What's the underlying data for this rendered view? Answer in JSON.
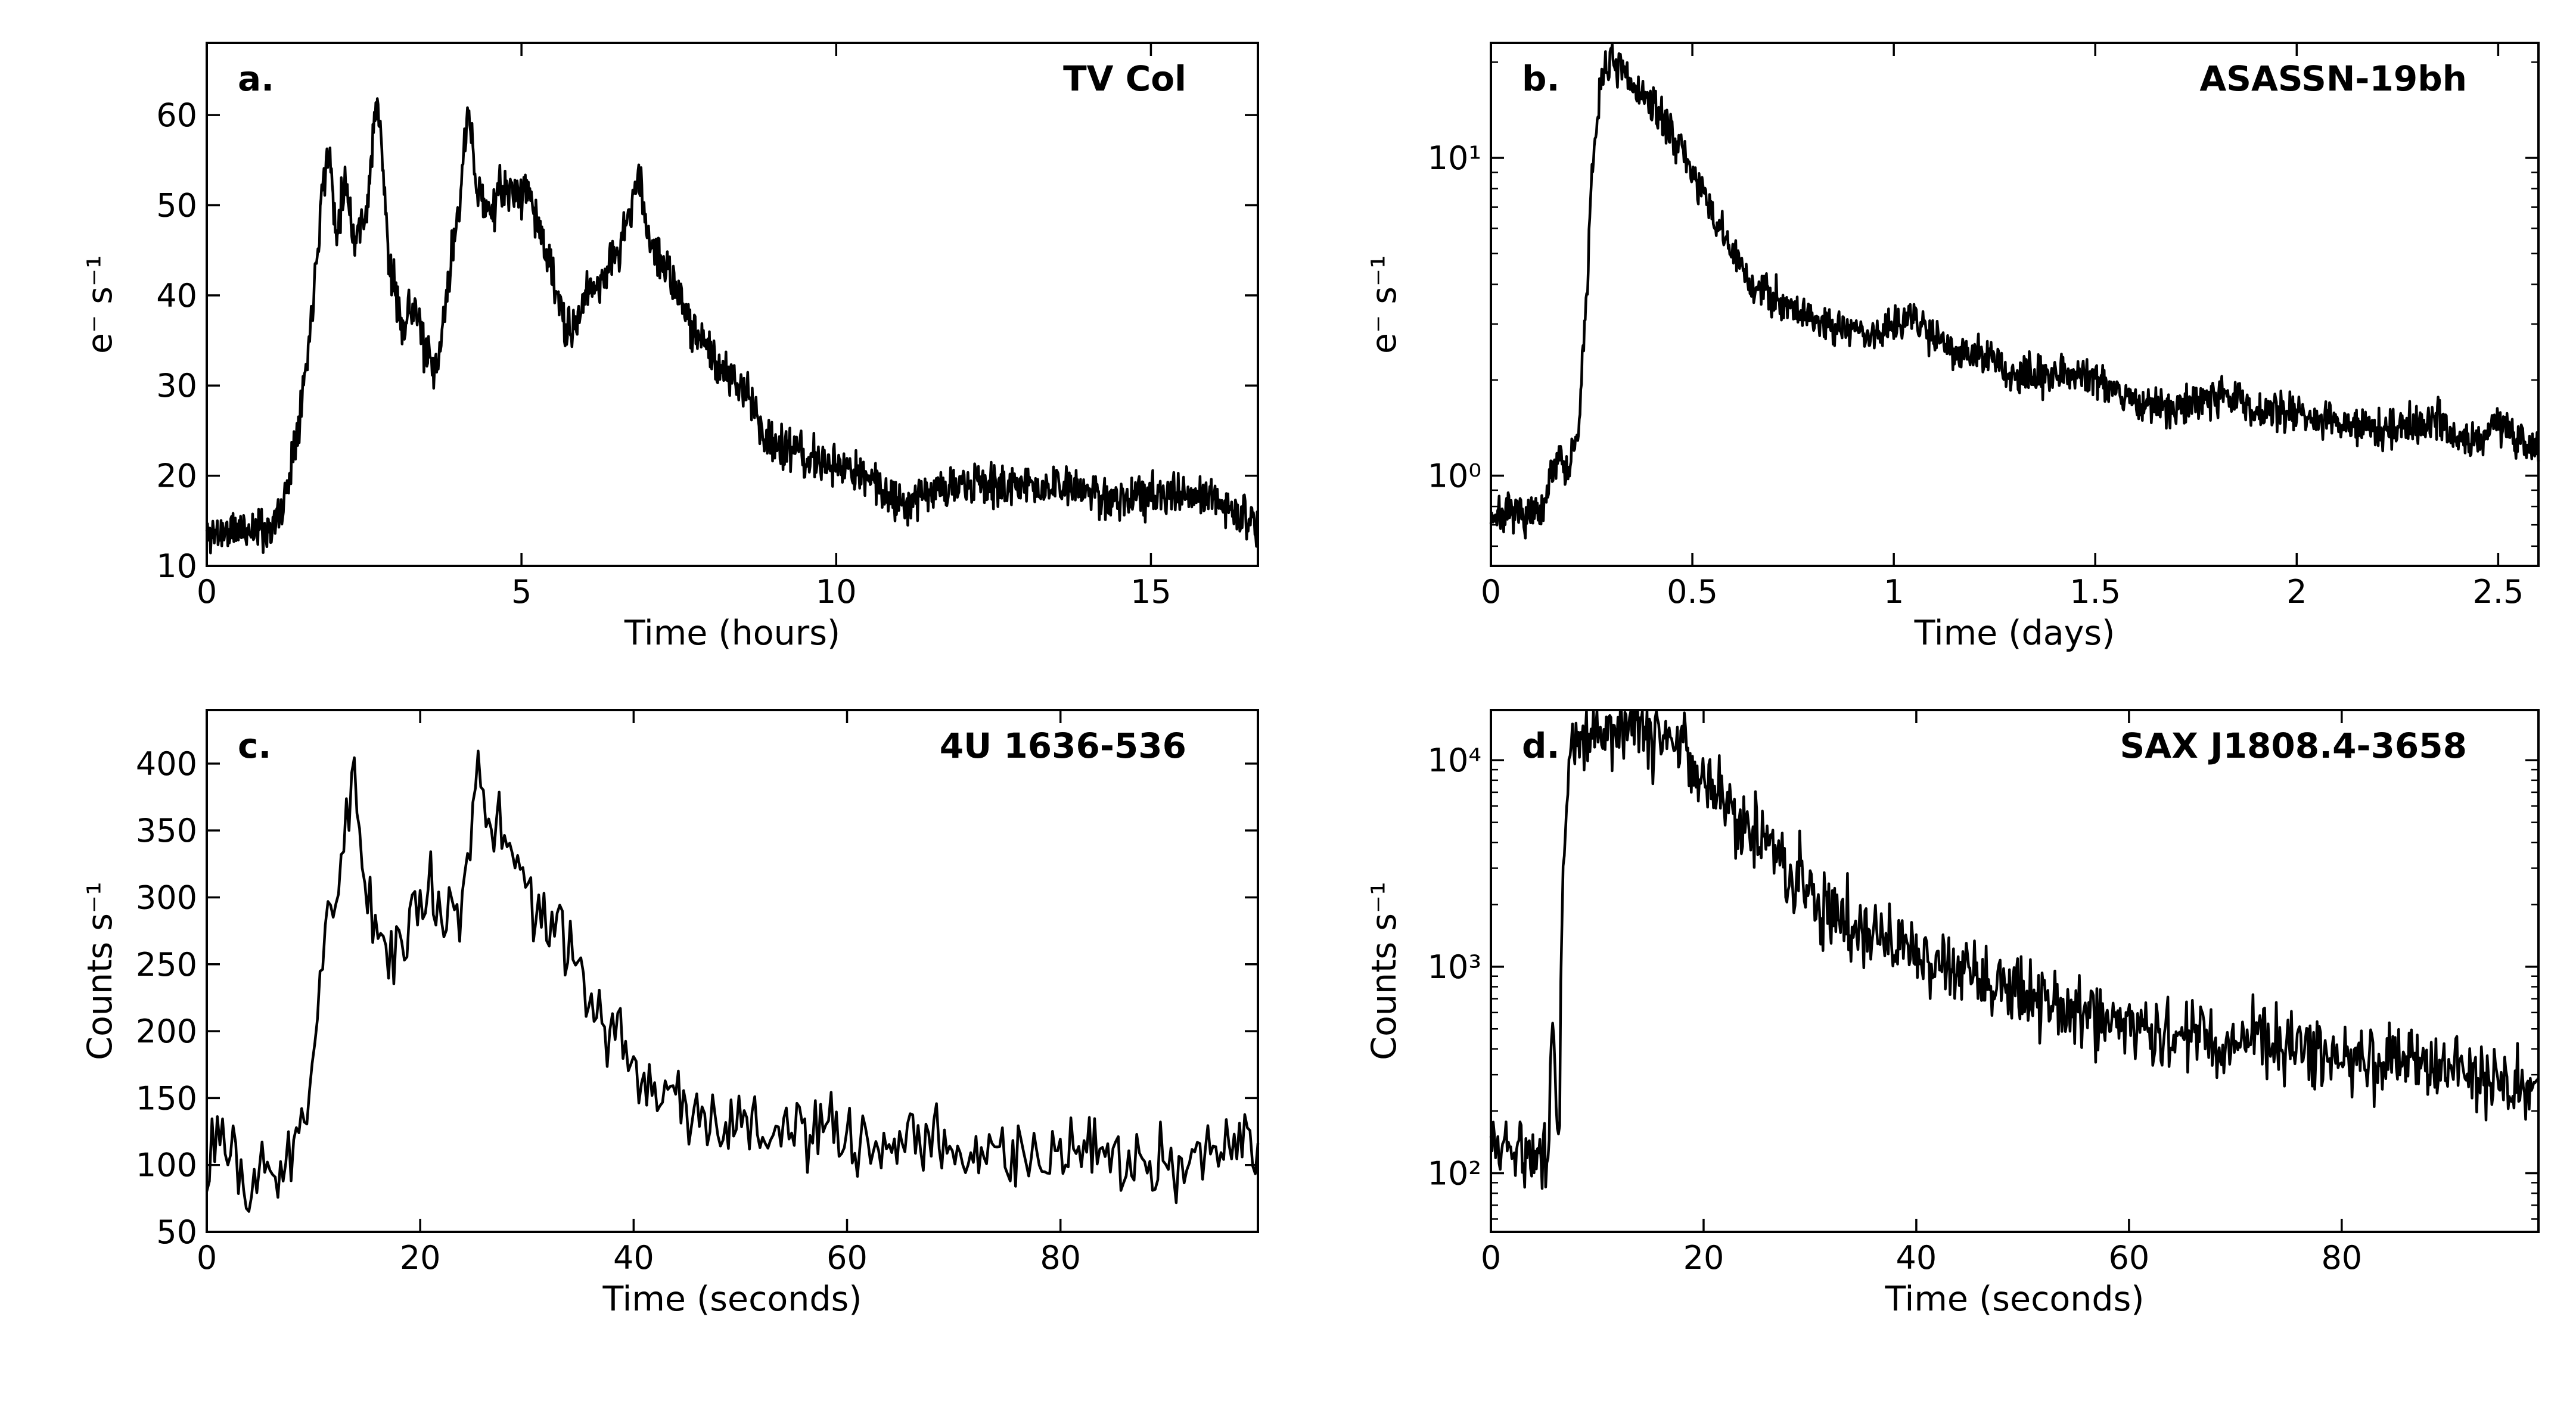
{
  "chart_data": [
    {
      "id": "a",
      "type": "line",
      "panel_label": "a.",
      "title": "TV Col",
      "xlabel": "Time (hours)",
      "ylabel": "e⁻ s⁻¹",
      "yscale": "linear",
      "xlim": [
        0,
        16.7
      ],
      "ylim": [
        10,
        68
      ],
      "xticks": [
        0,
        5,
        10,
        15
      ],
      "xtick_labels": [
        "0",
        "5",
        "10",
        "15"
      ],
      "yticks": [
        10,
        20,
        30,
        40,
        50,
        60
      ],
      "ytick_labels": [
        "10",
        "20",
        "30",
        "40",
        "50",
        "60"
      ],
      "noise": 1.2,
      "seed": 11,
      "n_points": 1400,
      "keypoints": [
        [
          0,
          13.5
        ],
        [
          0.5,
          14
        ],
        [
          1.0,
          14.2
        ],
        [
          1.2,
          16
        ],
        [
          1.4,
          24
        ],
        [
          1.6,
          33
        ],
        [
          1.75,
          45
        ],
        [
          1.85,
          53
        ],
        [
          1.95,
          56
        ],
        [
          2.05,
          47
        ],
        [
          2.2,
          53
        ],
        [
          2.35,
          46
        ],
        [
          2.55,
          50
        ],
        [
          2.7,
          62
        ],
        [
          2.8,
          54
        ],
        [
          2.9,
          43
        ],
        [
          3.1,
          37
        ],
        [
          3.3,
          39
        ],
        [
          3.5,
          33
        ],
        [
          3.65,
          31
        ],
        [
          3.85,
          42
        ],
        [
          4.0,
          50
        ],
        [
          4.15,
          60
        ],
        [
          4.3,
          52
        ],
        [
          4.5,
          49
        ],
        [
          4.7,
          52
        ],
        [
          4.9,
          51
        ],
        [
          5.1,
          52
        ],
        [
          5.3,
          47
        ],
        [
          5.5,
          42
        ],
        [
          5.7,
          36
        ],
        [
          5.85,
          36
        ],
        [
          6.0,
          40
        ],
        [
          6.3,
          42
        ],
        [
          6.6,
          46
        ],
        [
          6.85,
          53
        ],
        [
          7.05,
          46
        ],
        [
          7.3,
          43
        ],
        [
          7.6,
          38
        ],
        [
          7.9,
          35
        ],
        [
          8.2,
          31
        ],
        [
          8.55,
          30
        ],
        [
          8.9,
          24
        ],
        [
          9.5,
          22
        ],
        [
          10.0,
          21
        ],
        [
          10.5,
          20
        ],
        [
          11.0,
          17
        ],
        [
          11.5,
          18.5
        ],
        [
          12.5,
          19
        ],
        [
          13.5,
          18.7
        ],
        [
          14.5,
          17.5
        ],
        [
          15.5,
          17.8
        ],
        [
          16.2,
          17
        ],
        [
          16.7,
          14.5
        ]
      ]
    },
    {
      "id": "b",
      "type": "line",
      "panel_label": "b.",
      "title": "ASASSN-19bh",
      "xlabel": "Time (days)",
      "ylabel": "e⁻ s⁻¹",
      "yscale": "log",
      "xlim": [
        0,
        2.6
      ],
      "ylim": [
        0.52,
        23
      ],
      "xticks": [
        0,
        0.5,
        1,
        1.5,
        2,
        2.5
      ],
      "xtick_labels": [
        "0",
        "0.5",
        "1",
        "1.5",
        "2",
        "2.5"
      ],
      "yticks": [
        1,
        10
      ],
      "ytick_labels": [
        "10⁰",
        "10¹"
      ],
      "noise": 0.03,
      "seed": 7,
      "n_points": 1400,
      "keypoints": [
        [
          0,
          0.75
        ],
        [
          0.13,
          0.75
        ],
        [
          0.15,
          1.0
        ],
        [
          0.17,
          1.2
        ],
        [
          0.19,
          1.0
        ],
        [
          0.22,
          1.4
        ],
        [
          0.24,
          4
        ],
        [
          0.26,
          12
        ],
        [
          0.28,
          19.5
        ],
        [
          0.3,
          20
        ],
        [
          0.35,
          17
        ],
        [
          0.4,
          14.5
        ],
        [
          0.45,
          12
        ],
        [
          0.5,
          9
        ],
        [
          0.55,
          6.5
        ],
        [
          0.6,
          5
        ],
        [
          0.65,
          3.9
        ],
        [
          0.7,
          3.7
        ],
        [
          0.8,
          3.1
        ],
        [
          0.9,
          2.9
        ],
        [
          0.95,
          2.7
        ],
        [
          1.0,
          3.1
        ],
        [
          1.05,
          3.1
        ],
        [
          1.15,
          2.5
        ],
        [
          1.25,
          2.3
        ],
        [
          1.3,
          2.0
        ],
        [
          1.4,
          2.15
        ],
        [
          1.5,
          2.05
        ],
        [
          1.6,
          1.7
        ],
        [
          1.7,
          1.6
        ],
        [
          1.8,
          1.85
        ],
        [
          1.9,
          1.6
        ],
        [
          2.0,
          1.6
        ],
        [
          2.1,
          1.45
        ],
        [
          2.2,
          1.4
        ],
        [
          2.3,
          1.45
        ],
        [
          2.35,
          1.55
        ],
        [
          2.4,
          1.25
        ],
        [
          2.5,
          1.45
        ],
        [
          2.6,
          1.2
        ]
      ]
    },
    {
      "id": "c",
      "type": "line",
      "panel_label": "c.",
      "title": "4U 1636-536",
      "xlabel": "Time (seconds)",
      "ylabel": "Counts s⁻¹",
      "yscale": "linear",
      "xlim": [
        0,
        98.5
      ],
      "ylim": [
        50,
        440
      ],
      "xticks": [
        0,
        20,
        40,
        60,
        80
      ],
      "xtick_labels": [
        "0",
        "20",
        "40",
        "60",
        "80"
      ],
      "yticks": [
        50,
        100,
        150,
        200,
        250,
        300,
        350,
        400
      ],
      "ytick_labels": [
        "50",
        "100",
        "150",
        "200",
        "250",
        "300",
        "350",
        "400"
      ],
      "noise": 14,
      "seed": 23,
      "n_points": 400,
      "keypoints": [
        [
          0,
          100
        ],
        [
          1,
          125
        ],
        [
          2,
          110
        ],
        [
          3,
          85
        ],
        [
          4,
          60
        ],
        [
          5,
          120
        ],
        [
          6,
          90
        ],
        [
          8,
          100
        ],
        [
          9,
          135
        ],
        [
          10,
          185
        ],
        [
          11,
          280
        ],
        [
          12,
          300
        ],
        [
          13,
          340
        ],
        [
          13.8,
          398
        ],
        [
          14.5,
          330
        ],
        [
          15.5,
          290
        ],
        [
          17,
          255
        ],
        [
          19,
          280
        ],
        [
          21,
          305
        ],
        [
          22,
          290
        ],
        [
          23,
          300
        ],
        [
          24,
          290
        ],
        [
          25.3,
          410
        ],
        [
          26.5,
          350
        ],
        [
          28,
          345
        ],
        [
          30,
          305
        ],
        [
          32,
          280
        ],
        [
          34,
          255
        ],
        [
          36,
          225
        ],
        [
          38,
          200
        ],
        [
          40,
          175
        ],
        [
          42,
          160
        ],
        [
          45,
          145
        ],
        [
          48,
          130
        ],
        [
          50,
          130
        ],
        [
          53,
          125
        ],
        [
          56,
          122
        ],
        [
          60,
          118
        ],
        [
          65,
          115
        ],
        [
          70,
          112
        ],
        [
          75,
          110
        ],
        [
          80,
          105
        ],
        [
          85,
          103
        ],
        [
          90,
          100
        ],
        [
          95,
          108
        ],
        [
          98.5,
          112
        ]
      ]
    },
    {
      "id": "d",
      "type": "line",
      "panel_label": "d.",
      "title": "SAX J1808.4-3658",
      "xlabel": "Time (seconds)",
      "ylabel": "Counts s⁻¹",
      "yscale": "log",
      "xlim": [
        0,
        98.5
      ],
      "ylim": [
        52,
        17500
      ],
      "xticks": [
        0,
        20,
        40,
        60,
        80
      ],
      "xtick_labels": [
        "0",
        "20",
        "40",
        "60",
        "80"
      ],
      "yticks": [
        100,
        1000,
        10000
      ],
      "ytick_labels": [
        "10²",
        "10³",
        "10⁴"
      ],
      "noise": 0.09,
      "seed": 5,
      "n_points": 900,
      "keypoints": [
        [
          0,
          140
        ],
        [
          2,
          130
        ],
        [
          4,
          125
        ],
        [
          5.5,
          130
        ],
        [
          5.8,
          650
        ],
        [
          6.1,
          180
        ],
        [
          6.5,
          200
        ],
        [
          7,
          5000
        ],
        [
          7.5,
          12000
        ],
        [
          9,
          13000
        ],
        [
          11,
          14500
        ],
        [
          13,
          15000
        ],
        [
          15,
          14000
        ],
        [
          17,
          12000
        ],
        [
          20,
          8500
        ],
        [
          23,
          5500
        ],
        [
          26,
          3800
        ],
        [
          30,
          2300
        ],
        [
          35,
          1500
        ],
        [
          40,
          1100
        ],
        [
          45,
          900
        ],
        [
          50,
          720
        ],
        [
          55,
          620
        ],
        [
          60,
          530
        ],
        [
          65,
          480
        ],
        [
          70,
          430
        ],
        [
          75,
          400
        ],
        [
          80,
          380
        ],
        [
          85,
          350
        ],
        [
          90,
          320
        ],
        [
          95,
          280
        ],
        [
          98.5,
          255
        ]
      ]
    }
  ]
}
